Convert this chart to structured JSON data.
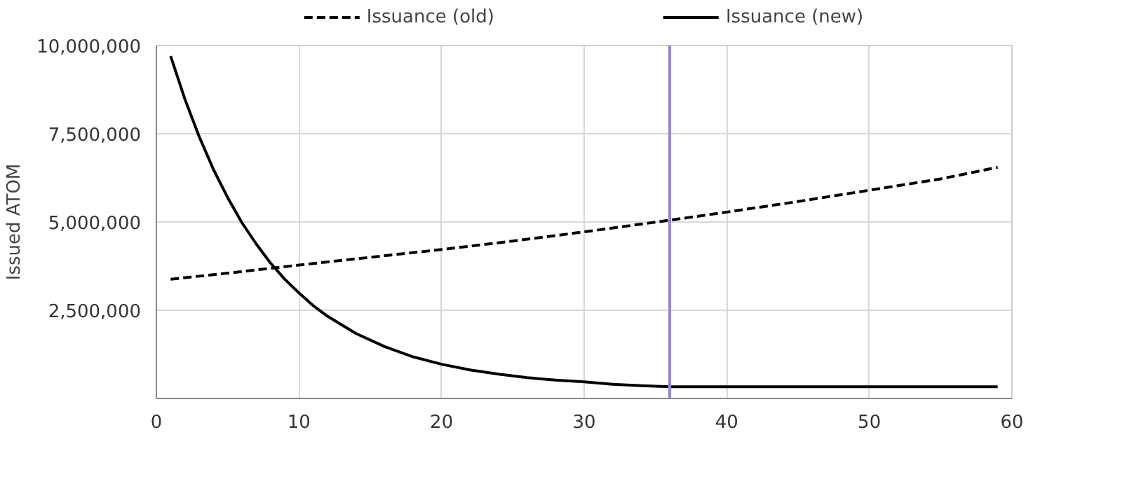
{
  "chart_data": {
    "type": "line",
    "ylabel": "Issued ATOM",
    "xlim": [
      0,
      60
    ],
    "ylim": [
      0,
      10000000
    ],
    "xticks": [
      0,
      10,
      20,
      30,
      40,
      50,
      60
    ],
    "yticks": [
      {
        "value": 2500000,
        "label": "2,500,000"
      },
      {
        "value": 5000000,
        "label": "5,000,000"
      },
      {
        "value": 7500000,
        "label": "7,500,000"
      },
      {
        "value": 10000000,
        "label": "10,000,000"
      }
    ],
    "grid": true,
    "legend": "top",
    "marker": "none",
    "series": [
      {
        "name": "Issuance (old)",
        "color": "#000000",
        "line_style": "dashed",
        "x": [
          1,
          5,
          10,
          15,
          20,
          25,
          30,
          36,
          40,
          45,
          50,
          55,
          59
        ],
        "values": [
          3380000,
          3550000,
          3780000,
          4000000,
          4220000,
          4460000,
          4720000,
          5050000,
          5280000,
          5580000,
          5900000,
          6220000,
          6550000
        ]
      },
      {
        "name": "Issuance (new)",
        "color": "#000000",
        "line_style": "solid",
        "x": [
          1,
          2,
          3,
          4,
          5,
          6,
          7,
          8,
          9,
          10,
          11,
          12,
          14,
          16,
          18,
          20,
          22,
          24,
          26,
          28,
          30,
          32,
          34,
          36,
          59
        ],
        "values": [
          9700000,
          8480000,
          7420000,
          6490000,
          5690000,
          4980000,
          4380000,
          3840000,
          3380000,
          2990000,
          2630000,
          2330000,
          1840000,
          1470000,
          1180000,
          970000,
          810000,
          690000,
          590000,
          520000,
          470000,
          400000,
          360000,
          330000,
          330000
        ]
      }
    ],
    "ref_lines": [
      {
        "axis": "x",
        "value": 36,
        "color": "#9b87d6"
      }
    ]
  }
}
